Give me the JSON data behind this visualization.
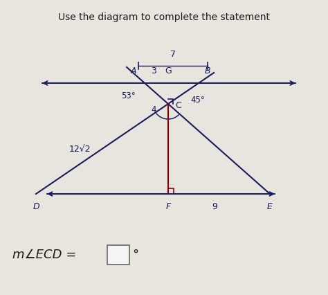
{
  "title": "Use the diagram to complete the statement",
  "background_color": "#e8e4de",
  "fig_width": 4.74,
  "fig_height": 4.26,
  "dpi": 100,
  "label_7": "7",
  "label_A": "A",
  "label_3": "3",
  "label_G": "G",
  "label_B": "B",
  "label_53": "53°",
  "label_4": "4",
  "label_C": "C",
  "label_45": "45°",
  "label_12sqrt2": "12√2",
  "label_D": "D",
  "label_F": "F",
  "label_9": "9",
  "label_E": "E",
  "label_m_angle": "m∠ECD",
  "label_equals": " = ",
  "line_color": "#1a1a5e",
  "dark_navy": "#1a1a5e",
  "red_color": "#8b0000",
  "answer_box_color": "#f5f5f5",
  "text_color": "#1a1a1a",
  "title_color": "#1a1a1a"
}
